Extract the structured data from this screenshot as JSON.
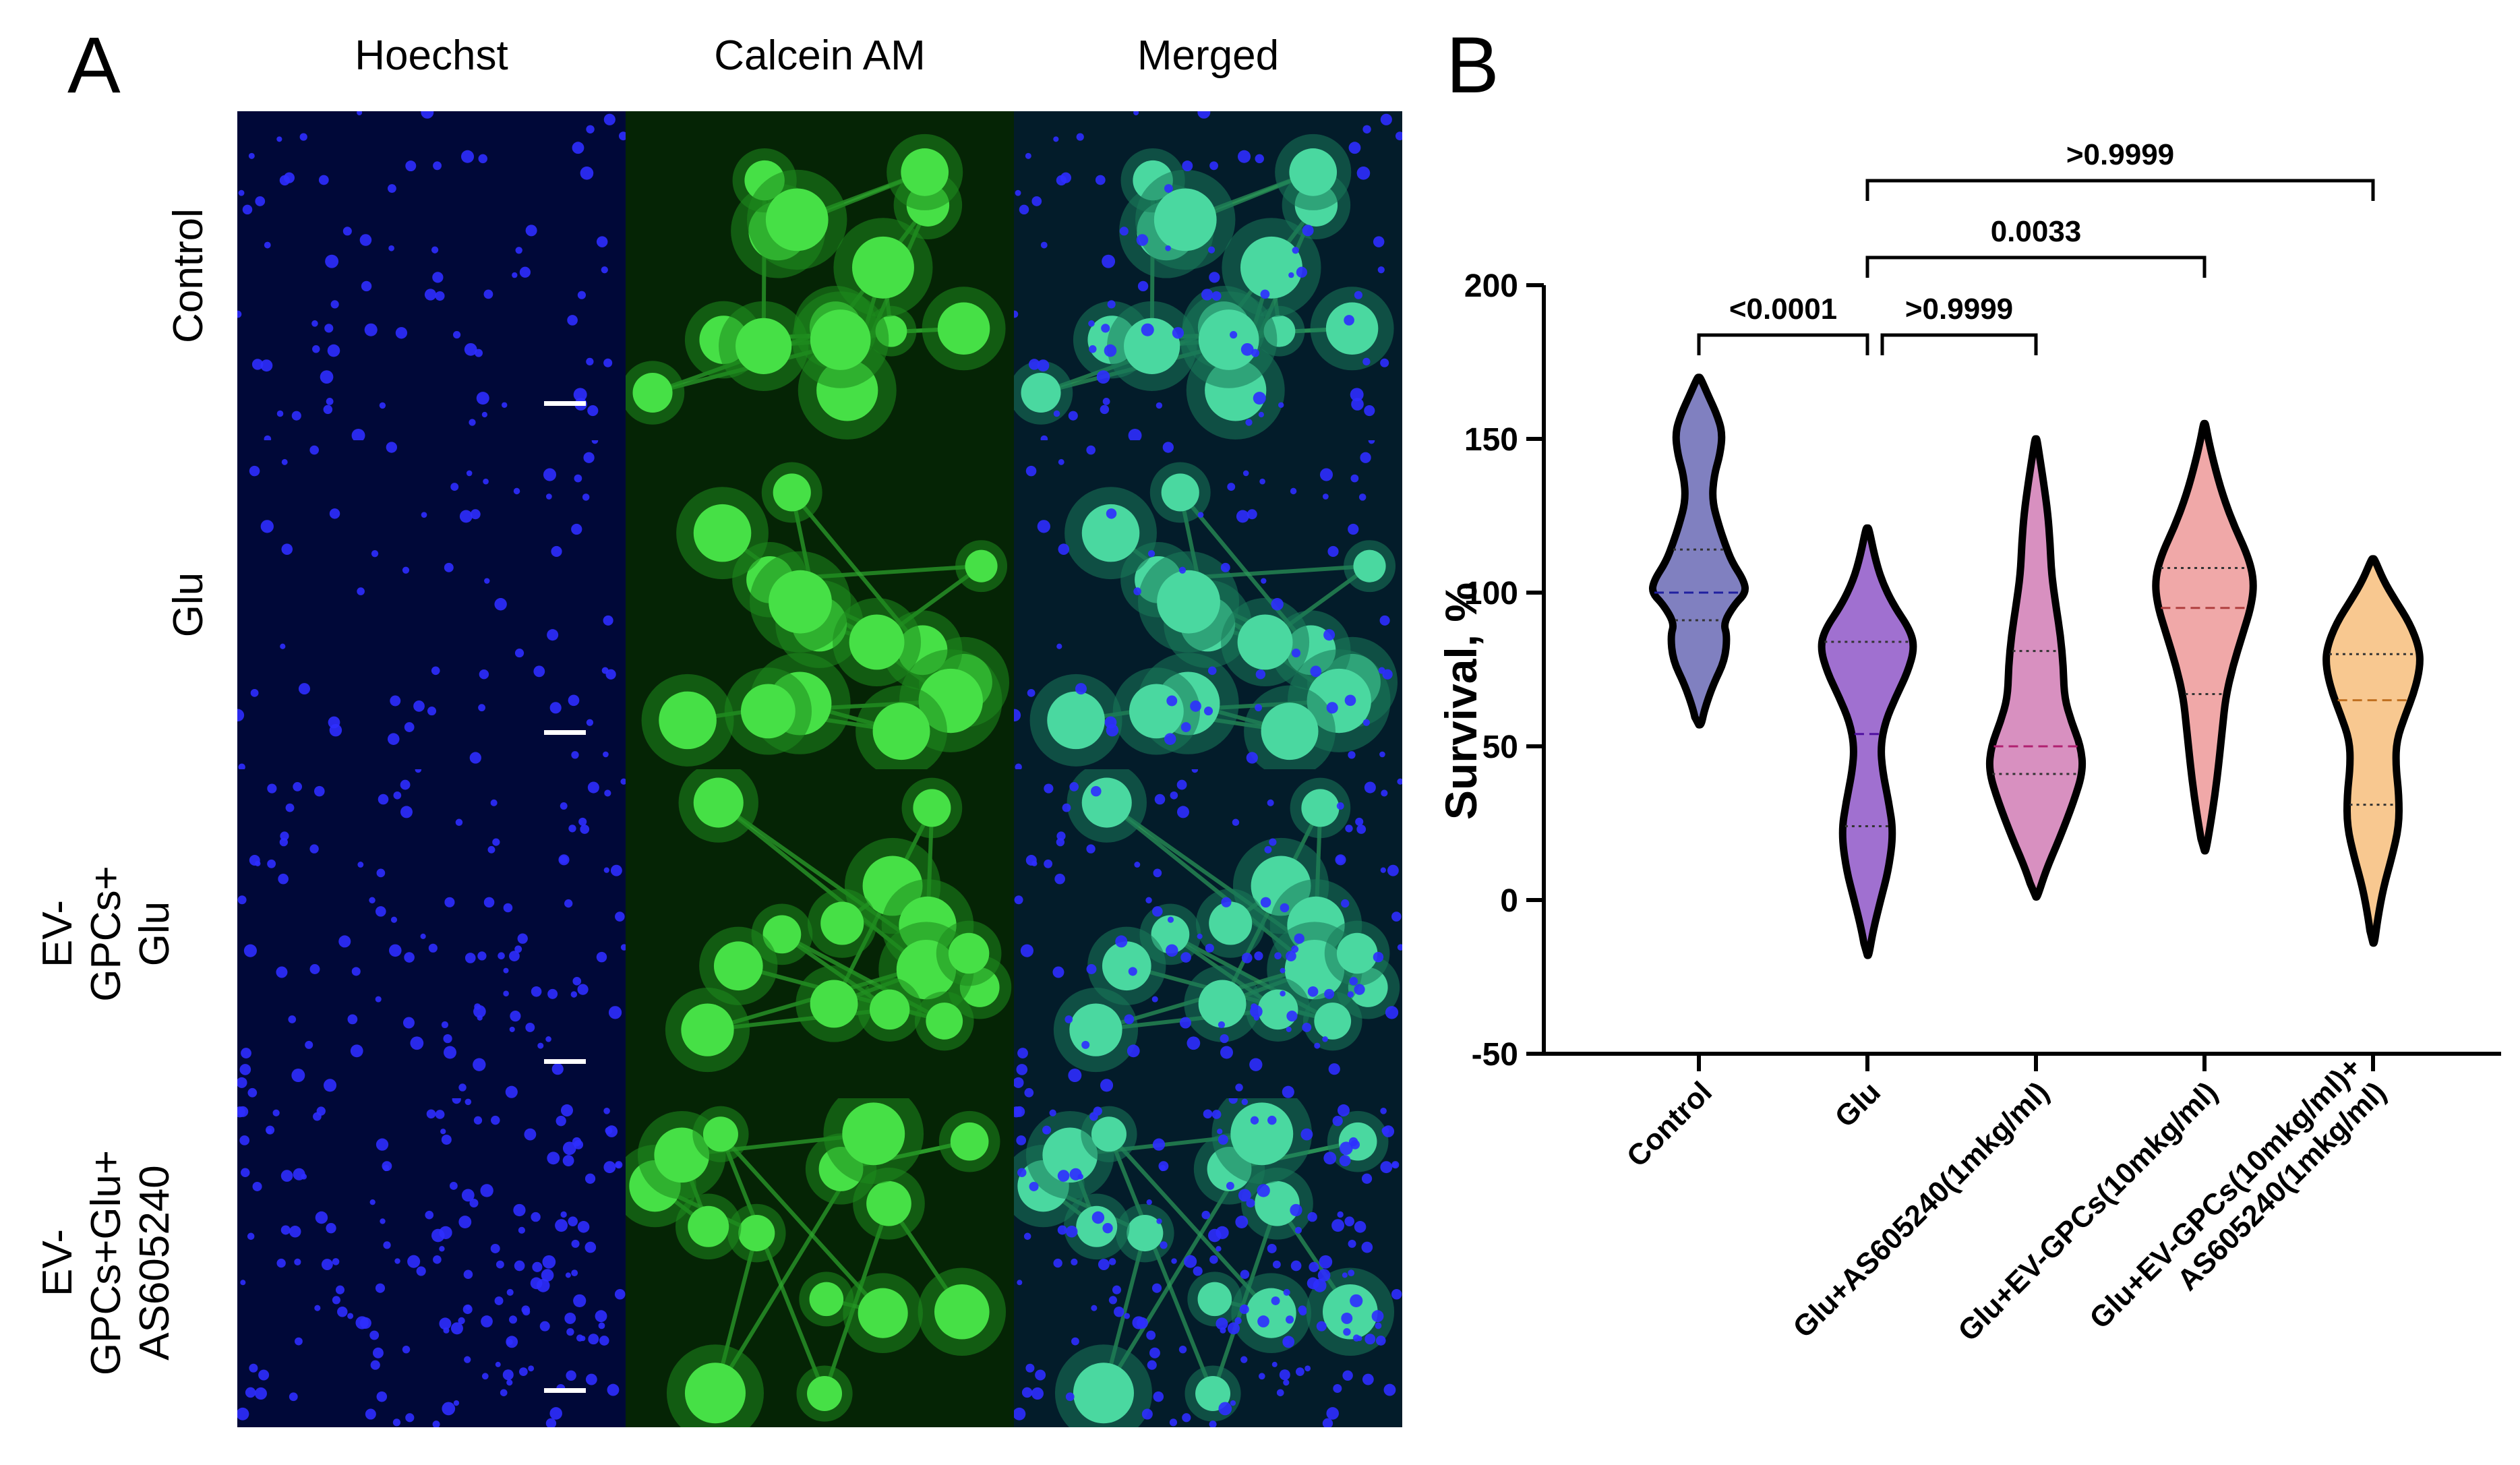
{
  "panel_a": {
    "letter": "A",
    "columns": [
      "Hoechst",
      "Calcein AM",
      "Merged"
    ],
    "rows": [
      {
        "lines": [
          "Control"
        ]
      },
      {
        "lines": [
          "Glu"
        ]
      },
      {
        "lines": [
          "EV-",
          "GPCs+",
          "Glu"
        ]
      },
      {
        "lines": [
          "EV-",
          "GPCs+Glu+",
          "AS605240"
        ]
      }
    ]
  },
  "panel_b": {
    "letter": "B"
  },
  "chart_data": {
    "type": "violin",
    "ylabel": "Survival, %",
    "ylim": [
      -50,
      200
    ],
    "yticks": [
      -50,
      0,
      50,
      100,
      150,
      200
    ],
    "categories": [
      {
        "lines": [
          "Control"
        ]
      },
      {
        "lines": [
          "Glu"
        ]
      },
      {
        "lines": [
          "Glu+AS605240(1mkg/ml)"
        ]
      },
      {
        "lines": [
          "Glu+EV-GPCs(10mkg/ml)"
        ]
      },
      {
        "lines": [
          "Glu+EV-GPCs(10mkg/ml)+",
          "AS605240(1mkg/ml)"
        ]
      }
    ],
    "series": [
      {
        "fill": "#8080c0",
        "median_color": "#2020a0",
        "min": 57,
        "max": 170,
        "q1": 91,
        "median": 100,
        "q3": 114,
        "density": [
          [
            57,
            0.05
          ],
          [
            62,
            0.12
          ],
          [
            70,
            0.3
          ],
          [
            78,
            0.55
          ],
          [
            86,
            0.6
          ],
          [
            90,
            0.52
          ],
          [
            96,
            0.75
          ],
          [
            100,
            1.0
          ],
          [
            104,
            0.95
          ],
          [
            110,
            0.7
          ],
          [
            116,
            0.55
          ],
          [
            122,
            0.42
          ],
          [
            130,
            0.28
          ],
          [
            138,
            0.32
          ],
          [
            145,
            0.45
          ],
          [
            152,
            0.5
          ],
          [
            158,
            0.38
          ],
          [
            164,
            0.2
          ],
          [
            170,
            0.03
          ]
        ]
      },
      {
        "fill": "#a070d0",
        "median_color": "#5010a0",
        "min": -18,
        "max": 121,
        "q1": 24,
        "median": 54,
        "q3": 84,
        "density": [
          [
            -18,
            0.03
          ],
          [
            -10,
            0.12
          ],
          [
            0,
            0.28
          ],
          [
            10,
            0.45
          ],
          [
            22,
            0.55
          ],
          [
            32,
            0.45
          ],
          [
            42,
            0.32
          ],
          [
            50,
            0.28
          ],
          [
            58,
            0.38
          ],
          [
            66,
            0.6
          ],
          [
            74,
            0.85
          ],
          [
            82,
            1.0
          ],
          [
            88,
            0.9
          ],
          [
            96,
            0.55
          ],
          [
            104,
            0.3
          ],
          [
            112,
            0.15
          ],
          [
            121,
            0.03
          ]
        ]
      },
      {
        "fill": "#d890c0",
        "median_color": "#b02070",
        "min": 1,
        "max": 150,
        "q1": 41,
        "median": 50,
        "q3": 81,
        "density": [
          [
            1,
            0.03
          ],
          [
            10,
            0.22
          ],
          [
            20,
            0.5
          ],
          [
            32,
            0.8
          ],
          [
            42,
            1.0
          ],
          [
            50,
            0.95
          ],
          [
            58,
            0.75
          ],
          [
            66,
            0.6
          ],
          [
            76,
            0.58
          ],
          [
            86,
            0.52
          ],
          [
            96,
            0.42
          ],
          [
            106,
            0.33
          ],
          [
            116,
            0.3
          ],
          [
            126,
            0.25
          ],
          [
            136,
            0.16
          ],
          [
            144,
            0.08
          ],
          [
            150,
            0.02
          ]
        ]
      },
      {
        "fill": "#f0a8a8",
        "median_color": "#b04040",
        "min": 16,
        "max": 155,
        "q1": 67,
        "median": 95,
        "q3": 108,
        "density": [
          [
            16,
            0.03
          ],
          [
            24,
            0.12
          ],
          [
            34,
            0.22
          ],
          [
            44,
            0.3
          ],
          [
            56,
            0.38
          ],
          [
            66,
            0.45
          ],
          [
            76,
            0.6
          ],
          [
            86,
            0.8
          ],
          [
            96,
            1.0
          ],
          [
            104,
            1.05
          ],
          [
            112,
            0.92
          ],
          [
            122,
            0.62
          ],
          [
            132,
            0.38
          ],
          [
            142,
            0.2
          ],
          [
            150,
            0.08
          ],
          [
            155,
            0.02
          ]
        ]
      },
      {
        "fill": "#f8c890",
        "median_color": "#c07020",
        "min": -14,
        "max": 111,
        "q1": 31,
        "median": 65,
        "q3": 80,
        "density": [
          [
            -14,
            0.03
          ],
          [
            -6,
            0.1
          ],
          [
            4,
            0.22
          ],
          [
            14,
            0.4
          ],
          [
            24,
            0.55
          ],
          [
            34,
            0.55
          ],
          [
            44,
            0.48
          ],
          [
            52,
            0.5
          ],
          [
            60,
            0.68
          ],
          [
            68,
            0.88
          ],
          [
            76,
            1.0
          ],
          [
            82,
            0.98
          ],
          [
            90,
            0.78
          ],
          [
            98,
            0.45
          ],
          [
            104,
            0.22
          ],
          [
            111,
            0.03
          ]
        ]
      }
    ],
    "comparisons": [
      {
        "from": 0,
        "to": 1,
        "label": "<0.0001",
        "level": 0
      },
      {
        "from": 1,
        "to": 2,
        "label": ">0.9999",
        "level": 0
      },
      {
        "from": 1,
        "to": 3,
        "label": "0.0033",
        "level": 1
      },
      {
        "from": 1,
        "to": 4,
        "label": ">0.9999",
        "level": 2
      }
    ]
  }
}
